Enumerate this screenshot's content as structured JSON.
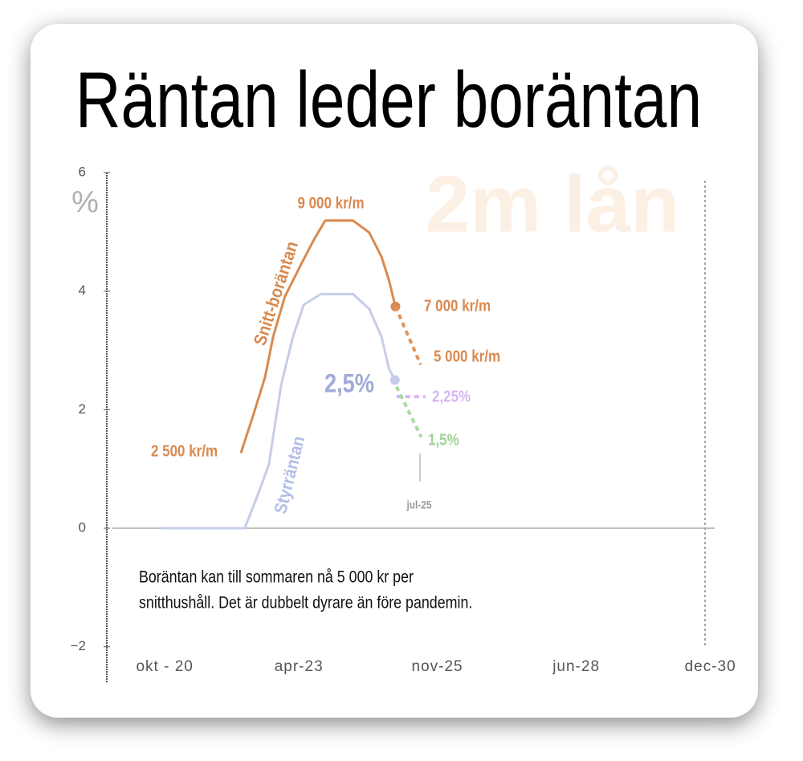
{
  "chart_data": {
    "type": "line",
    "title": "Räntan leder boräntan",
    "watermark": "2m lån",
    "ylabel": "%",
    "xlim": [
      2019.67,
      2031
    ],
    "ylim": [
      -2.6,
      6
    ],
    "xticks": [
      {
        "value": 2020.75,
        "label": "okt - 20"
      },
      {
        "value": 2023.25,
        "label": "apr-23"
      },
      {
        "value": 2025.83,
        "label": "nov-25"
      },
      {
        "value": 2028.42,
        "label": "jun-28"
      },
      {
        "value": 2030.92,
        "label": "dec-30"
      }
    ],
    "yticks": [
      {
        "value": -2,
        "label": "−2"
      },
      0,
      2,
      4,
      6
    ],
    "series": [
      {
        "name": "Snitt-boräntan",
        "color": "#d98a50",
        "x": [
          2022.17,
          2022.39,
          2022.62,
          2022.77,
          2022.99,
          2023.29,
          2023.52,
          2023.74,
          2024.26,
          2024.56,
          2024.79,
          2024.93,
          2025.05
        ],
        "values": [
          1.27,
          1.88,
          2.55,
          3.23,
          3.91,
          4.45,
          4.85,
          5.19,
          5.19,
          4.99,
          4.58,
          4.18,
          3.74
        ]
      },
      {
        "name": "Styrräntan",
        "color": "#c5cdea",
        "x": [
          2020.68,
          2022.24,
          2022.47,
          2022.69,
          2022.92,
          2023.14,
          2023.34,
          2023.66,
          2024.26,
          2024.56,
          2024.79,
          2024.93,
          2025.04
        ],
        "values": [
          0,
          0,
          0.53,
          1.07,
          2.42,
          3.23,
          3.77,
          3.95,
          3.95,
          3.7,
          3.23,
          2.69,
          2.5
        ]
      }
    ],
    "projections": [
      {
        "color": "#e0935a",
        "x": [
          2025.05,
          2025.52
        ],
        "values": [
          3.74,
          2.76
        ]
      },
      {
        "color": "#d8b6f2",
        "x": [
          2025.07,
          2025.61
        ],
        "values": [
          2.22,
          2.22
        ]
      },
      {
        "color": "#a9dba0",
        "x": [
          2025.07,
          2025.53
        ],
        "values": [
          2.39,
          1.54
        ]
      }
    ],
    "annotations": [
      "9 000 kr/m",
      "7 000 kr/m",
      "5 000 kr/m",
      "2 500 kr/m",
      "2,5%",
      "2,25%",
      "1,5%",
      "jul-25"
    ],
    "note": [
      "Boräntan kan till sommaren nå 5 000 kr per",
      "snitthushåll. Det är dubbelt dyrare än före pandemin."
    ]
  }
}
